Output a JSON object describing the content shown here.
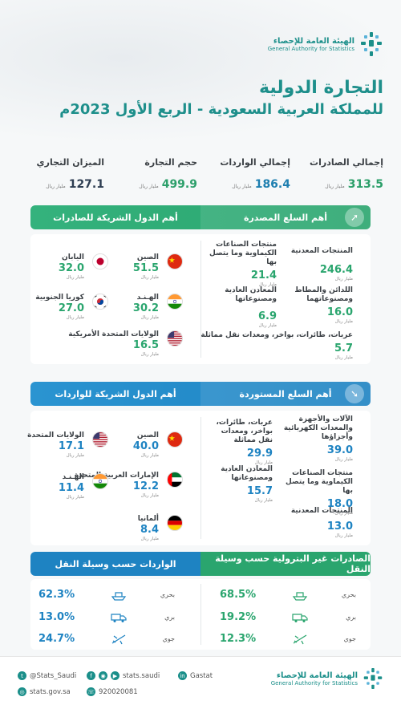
{
  "org": {
    "name_ar": "الهيئة العامة للإحصاء",
    "name_en": "General Authority for Statistics"
  },
  "title": {
    "line1": "التجارة الدولية",
    "line2": "للمملكة العربية السعودية - الربع الأول 2023م"
  },
  "kpis": [
    {
      "label": "إجمالي الصادرات",
      "value": "313.5",
      "unit": "مليار ريال"
    },
    {
      "label": "إجمالي الواردات",
      "value": "186.4",
      "unit": "مليار ريال"
    },
    {
      "label": "حجم التجارة",
      "value": "499.9",
      "unit": "مليار ريال"
    },
    {
      "label": "الميزان التجاري",
      "value": "127.1",
      "unit": "مليار ريال"
    }
  ],
  "exports": {
    "goods_header": "أهم السلع المصدرة",
    "partners_header": "أهم الدول الشريكة للصادرات",
    "goods": [
      {
        "name": "المنتجات المعدنية",
        "value": "246.4",
        "unit": "مليار ريال"
      },
      {
        "name": "منتجات الصناعات الكيماوية وما يتصل بها",
        "value": "21.4",
        "unit": "مليار ريال"
      },
      {
        "name": "اللدائن والمطاط ومصنوعاتهما",
        "value": "16.0",
        "unit": "مليار ريال"
      },
      {
        "name": "المعادن العادية ومصنوعاتها",
        "value": "6.9",
        "unit": "مليار ريال"
      },
      {
        "name": "عربات، طائرات، بواخر، ومعدات نقل مماثلة",
        "value": "5.7",
        "unit": "مليار ريال"
      }
    ],
    "partners": [
      {
        "name": "الصين",
        "value": "51.5",
        "unit": "مليار ريال",
        "flag": "china"
      },
      {
        "name": "اليابان",
        "value": "32.0",
        "unit": "مليار ريال",
        "flag": "japan"
      },
      {
        "name": "الهـنـد",
        "value": "30.2",
        "unit": "مليار ريال",
        "flag": "india"
      },
      {
        "name": "كوريا الجنوبية",
        "value": "27.0",
        "unit": "مليار ريال",
        "flag": "korea"
      },
      {
        "name": "الولايات المتحدة الأمريكية",
        "value": "16.5",
        "unit": "مليار ريال",
        "flag": "usa"
      }
    ]
  },
  "imports": {
    "goods_header": "أهم السلع المستوردة",
    "partners_header": "أهم الدول الشريكة للواردات",
    "goods": [
      {
        "name": "الآلات والأجهزة والمعدات الكهربائية وأجزاؤها",
        "value": "39.0",
        "unit": "مليار ريال"
      },
      {
        "name": "عربات، طائرات، بواخر، ومعدات نقل مماثلة",
        "value": "29.9",
        "unit": "مليار ريال"
      },
      {
        "name": "منتجات الصناعات الكيماوية وما يتصل بها",
        "value": "18.0",
        "unit": "مليار ريال"
      },
      {
        "name": "المعادن العادية ومصنوعاتها",
        "value": "15.7",
        "unit": "مليار ريال"
      },
      {
        "name": "المنتجات المعدنية",
        "value": "13.0",
        "unit": "مليار ريال"
      }
    ],
    "partners": [
      {
        "name": "الصين",
        "value": "40.0",
        "unit": "مليار ريال",
        "flag": "china"
      },
      {
        "name": "الولايات المتحدة",
        "value": "17.1",
        "unit": "مليار ريال",
        "flag": "usa"
      },
      {
        "name": "الإمارات العربية المتحدة",
        "value": "12.2",
        "unit": "مليار ريال",
        "flag": "uae"
      },
      {
        "name": "الهـنـد",
        "value": "11.4",
        "unit": "مليار ريال",
        "flag": "india"
      },
      {
        "name": "ألمانيا",
        "value": "8.4",
        "unit": "مليار ريال",
        "flag": "germany"
      }
    ]
  },
  "transport": {
    "exports_header": "الصادرات غير البترولية حسب وسيلة النقل",
    "imports_header": "الواردات حسب وسيلة النقل",
    "exports": [
      {
        "mode": "بحري",
        "pct": "68.5%",
        "icon": "ship-icon"
      },
      {
        "mode": "بري",
        "pct": "19.2%",
        "icon": "truck-icon"
      },
      {
        "mode": "جوي",
        "pct": "12.3%",
        "icon": "plane-icon"
      }
    ],
    "imports": [
      {
        "mode": "بحري",
        "pct": "62.3%",
        "icon": "ship-icon"
      },
      {
        "mode": "بري",
        "pct": "13.0%",
        "icon": "truck-icon"
      },
      {
        "mode": "جوي",
        "pct": "24.7%",
        "icon": "plane-icon"
      }
    ]
  },
  "footer": {
    "twitter": "@Stats_Saudi",
    "website": "stats.gov.sa",
    "social": "stats.saudi",
    "phone": "920020081",
    "linkedin": "Gastat"
  },
  "colors": {
    "green": "#2aa56e",
    "blue": "#1e83c2",
    "teal": "#1e8f8b"
  }
}
